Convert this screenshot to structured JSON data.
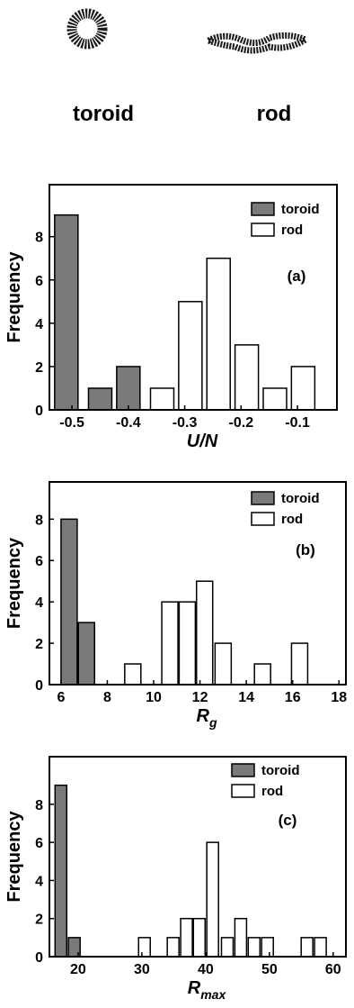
{
  "header": {
    "labels": [
      "toroid",
      "rod"
    ]
  },
  "chart_data": [
    {
      "type": "bar",
      "xlabel": "U/N",
      "ylabel": "Frequency",
      "annotation": "(a)",
      "xlim": [
        -0.54,
        -0.03
      ],
      "xticks": [
        -0.5,
        -0.4,
        -0.3,
        -0.2,
        -0.1
      ],
      "ylim": [
        0,
        10.4
      ],
      "yticks": [
        0,
        2,
        4,
        6,
        8
      ],
      "legend": "upper right",
      "series": [
        {
          "name": "toroid",
          "color": "#7a7a7a",
          "x": [
            -0.51,
            -0.45,
            -0.4
          ],
          "values": [
            9,
            1,
            2
          ]
        },
        {
          "name": "rod",
          "color": "#ffffff",
          "x": [
            -0.34,
            -0.29,
            -0.24,
            -0.19,
            -0.14,
            -0.09
          ],
          "values": [
            1,
            5,
            7,
            3,
            1,
            2
          ]
        }
      ]
    },
    {
      "type": "bar",
      "xlabel": "R",
      "xlabel_sub": "g",
      "ylabel": "Frequency",
      "annotation": "(b)",
      "xlim": [
        5.5,
        18.3
      ],
      "xticks": [
        6,
        8,
        10,
        12,
        14,
        16,
        18
      ],
      "ylim": [
        0,
        9.8
      ],
      "yticks": [
        0,
        2,
        4,
        6,
        8
      ],
      "legend": "upper right",
      "series": [
        {
          "name": "toroid",
          "color": "#7a7a7a",
          "x": [
            6.35,
            7.1
          ],
          "values": [
            8,
            3
          ]
        },
        {
          "name": "rod",
          "color": "#ffffff",
          "x": [
            9.1,
            10.7,
            11.45,
            12.2,
            13.0,
            14.7,
            16.3
          ],
          "values": [
            1,
            4,
            4,
            5,
            2,
            1,
            2
          ]
        }
      ]
    },
    {
      "type": "bar",
      "xlabel": "R",
      "xlabel_sub": "max",
      "ylabel": "Frequency",
      "annotation": "(c)",
      "xlim": [
        15.5,
        62
      ],
      "xticks": [
        20,
        30,
        40,
        50,
        60
      ],
      "ylim": [
        0,
        10.5
      ],
      "yticks": [
        0,
        2,
        4,
        6,
        8
      ],
      "legend": "upper right",
      "series": [
        {
          "name": "toroid",
          "color": "#7a7a7a",
          "x": [
            17.3,
            19.4
          ],
          "values": [
            9,
            1
          ]
        },
        {
          "name": "rod",
          "color": "#ffffff",
          "x": [
            30.4,
            34.9,
            37,
            39,
            41.1,
            43.4,
            45.5,
            47.6,
            49.7,
            55.9,
            58
          ],
          "values": [
            1,
            1,
            2,
            2,
            6,
            1,
            2,
            1,
            1,
            1,
            1
          ]
        }
      ]
    }
  ]
}
